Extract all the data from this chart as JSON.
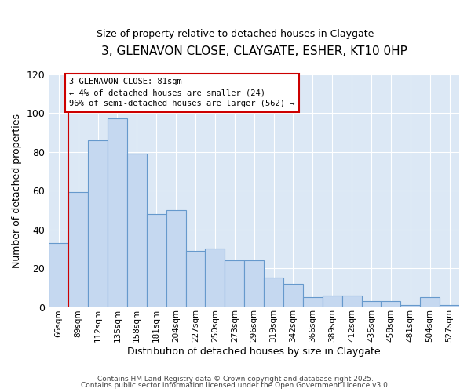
{
  "title": "3, GLENAVON CLOSE, CLAYGATE, ESHER, KT10 0HP",
  "subtitle": "Size of property relative to detached houses in Claygate",
  "categories": [
    "66sqm",
    "89sqm",
    "112sqm",
    "135sqm",
    "158sqm",
    "181sqm",
    "204sqm",
    "227sqm",
    "250sqm",
    "273sqm",
    "296sqm",
    "319sqm",
    "342sqm",
    "366sqm",
    "389sqm",
    "412sqm",
    "435sqm",
    "458sqm",
    "481sqm",
    "504sqm",
    "527sqm"
  ],
  "values": [
    33,
    59,
    86,
    97,
    79,
    48,
    50,
    29,
    30,
    24,
    24,
    15,
    12,
    5,
    6,
    6,
    3,
    3,
    1,
    5,
    1
  ],
  "bar_color": "#c5d8f0",
  "bar_edge_color": "#6699cc",
  "background_color": "#ffffff",
  "plot_bg_color": "#ffffff",
  "grid_color": "#d0dce8",
  "ylabel": "Number of detached properties",
  "xlabel": "Distribution of detached houses by size in Claygate",
  "ylim": [
    0,
    120
  ],
  "yticks": [
    0,
    20,
    40,
    60,
    80,
    100,
    120
  ],
  "annotation_text": "3 GLENAVON CLOSE: 81sqm\n← 4% of detached houses are smaller (24)\n96% of semi-detached houses are larger (562) →",
  "vline_color": "#cc0000",
  "annotation_box_color": "#ffffff",
  "annotation_box_edge": "#cc0000",
  "footer1": "Contains HM Land Registry data © Crown copyright and database right 2025.",
  "footer2": "Contains public sector information licensed under the Open Government Licence v3.0."
}
